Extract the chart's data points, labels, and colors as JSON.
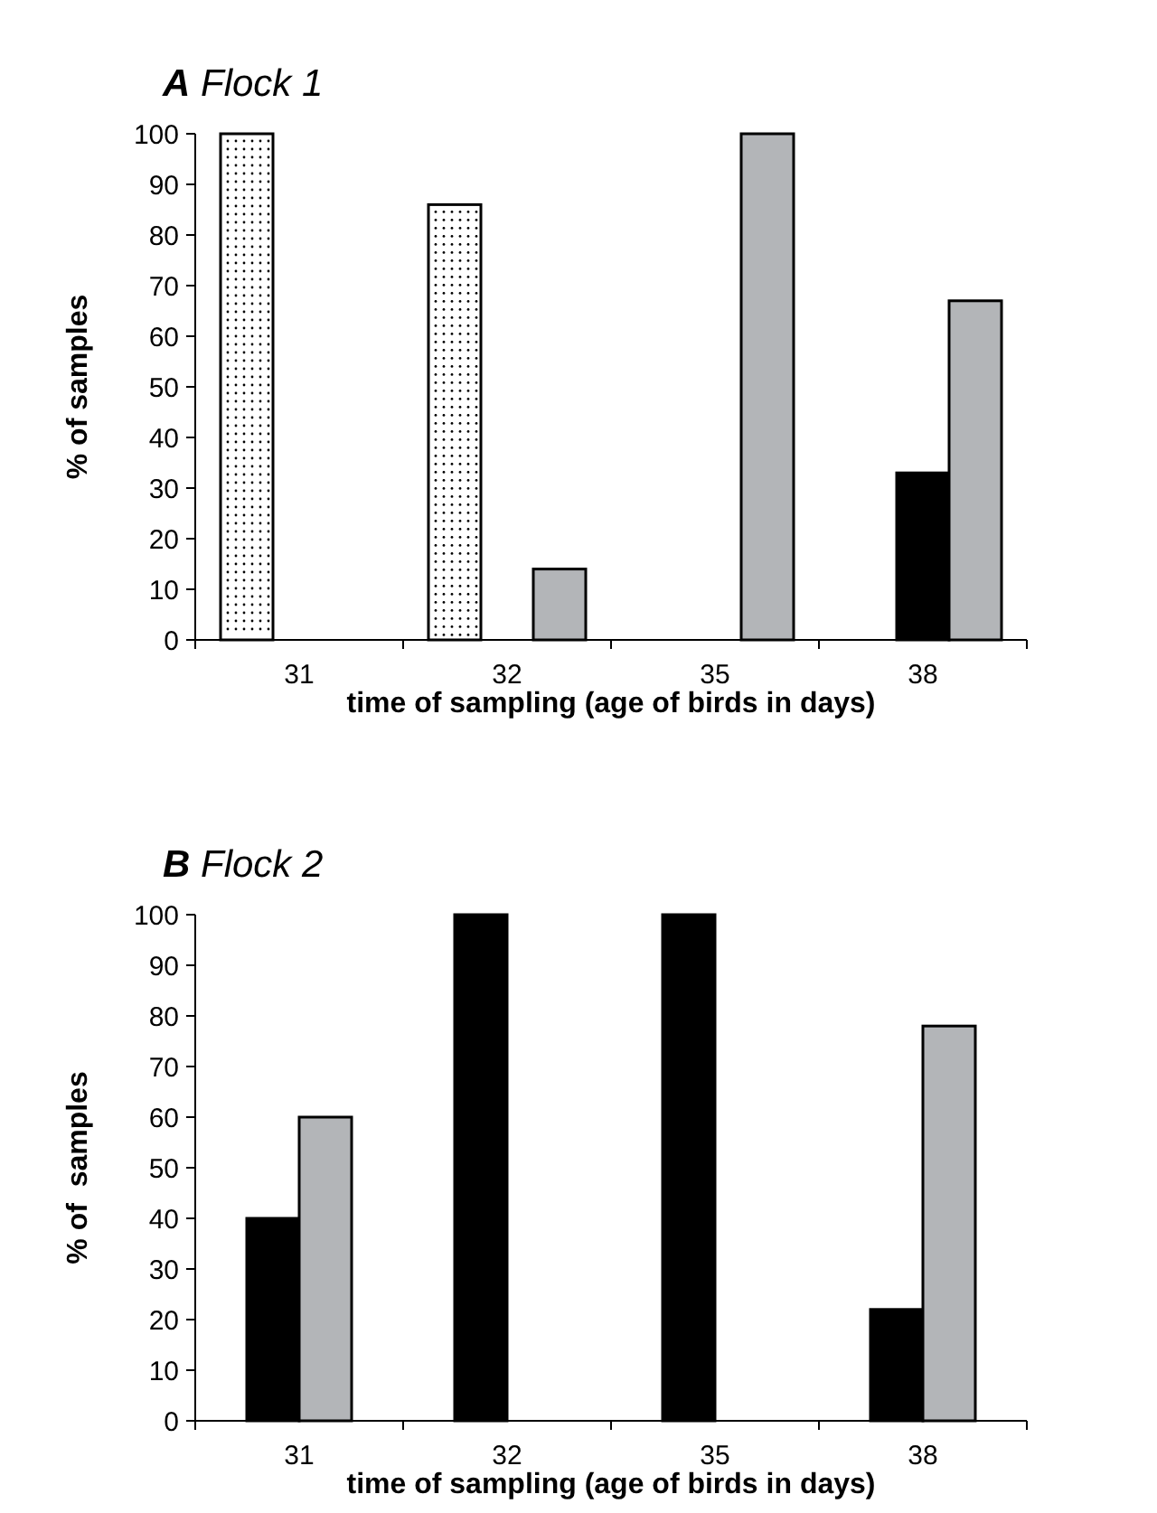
{
  "chart_data": [
    {
      "type": "bar",
      "title": "A Flock 1",
      "xlabel": "time of sampling (age of birds in days)",
      "ylabel": "% of samples",
      "categories": [
        "31",
        "32",
        "35",
        "38"
      ],
      "ylim": [
        0,
        100
      ],
      "yticks": [
        0,
        10,
        20,
        30,
        40,
        50,
        60,
        70,
        80,
        90,
        100
      ],
      "grid": false,
      "series": [
        {
          "color": "#ffffff",
          "values": [
            100,
            86,
            null,
            null
          ]
        },
        {
          "color": "#000000",
          "values": [
            null,
            null,
            null,
            33
          ]
        },
        {
          "color": "#b3b5b8",
          "values": [
            null,
            14,
            100,
            67
          ]
        }
      ]
    },
    {
      "type": "bar",
      "title": "B Flock 2",
      "xlabel": "time of sampling (age of birds in days)",
      "ylabel": "% of  samples",
      "categories": [
        "31",
        "32",
        "35",
        "38"
      ],
      "ylim": [
        0,
        100
      ],
      "yticks": [
        0,
        10,
        20,
        30,
        40,
        50,
        60,
        70,
        80,
        90,
        100
      ],
      "grid": false,
      "series": [
        {
          "color": "#000000",
          "values": [
            40,
            100,
            100,
            22
          ]
        },
        {
          "color": "#b3b5b8",
          "values": [
            60,
            null,
            null,
            78
          ]
        }
      ]
    }
  ]
}
